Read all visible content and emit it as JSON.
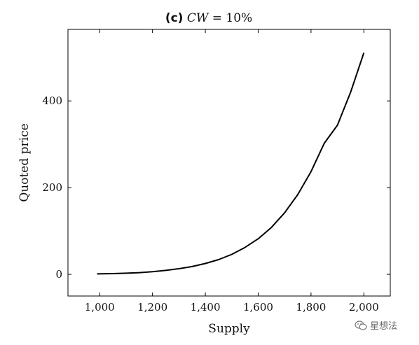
{
  "title": {
    "prefix": "(c)",
    "math": "CW",
    "rest": " = 10%"
  },
  "watermark": {
    "text": "星想法",
    "icon": "wechat-icon"
  },
  "chart_data": {
    "type": "line",
    "title": "(c) CW = 10%",
    "xlabel": "Supply",
    "ylabel": "Quoted price",
    "xlim": [
      880,
      2100
    ],
    "ylim": [
      -50,
      565
    ],
    "xticks": [
      1000,
      1200,
      1400,
      1600,
      1800,
      2000
    ],
    "xtick_labels": [
      "1,000",
      "1,200",
      "1,400",
      "1,600",
      "1,800",
      "2,000"
    ],
    "yticks": [
      0,
      200,
      400
    ],
    "ytick_labels": [
      "0",
      "200",
      "400"
    ],
    "grid": false,
    "line_color": "#000000",
    "series": [
      {
        "x": [
          990,
          1050,
          1100,
          1150,
          1200,
          1250,
          1300,
          1350,
          1400,
          1450,
          1500,
          1550,
          1600,
          1650,
          1700,
          1750,
          1800,
          1850,
          1900,
          1950,
          2000
        ],
        "y": [
          1,
          1.7,
          2.6,
          3.9,
          6,
          9,
          13,
          18,
          25,
          34,
          46,
          62,
          82,
          108,
          142,
          184,
          237,
          302,
          344,
          420,
          511
        ]
      }
    ]
  }
}
